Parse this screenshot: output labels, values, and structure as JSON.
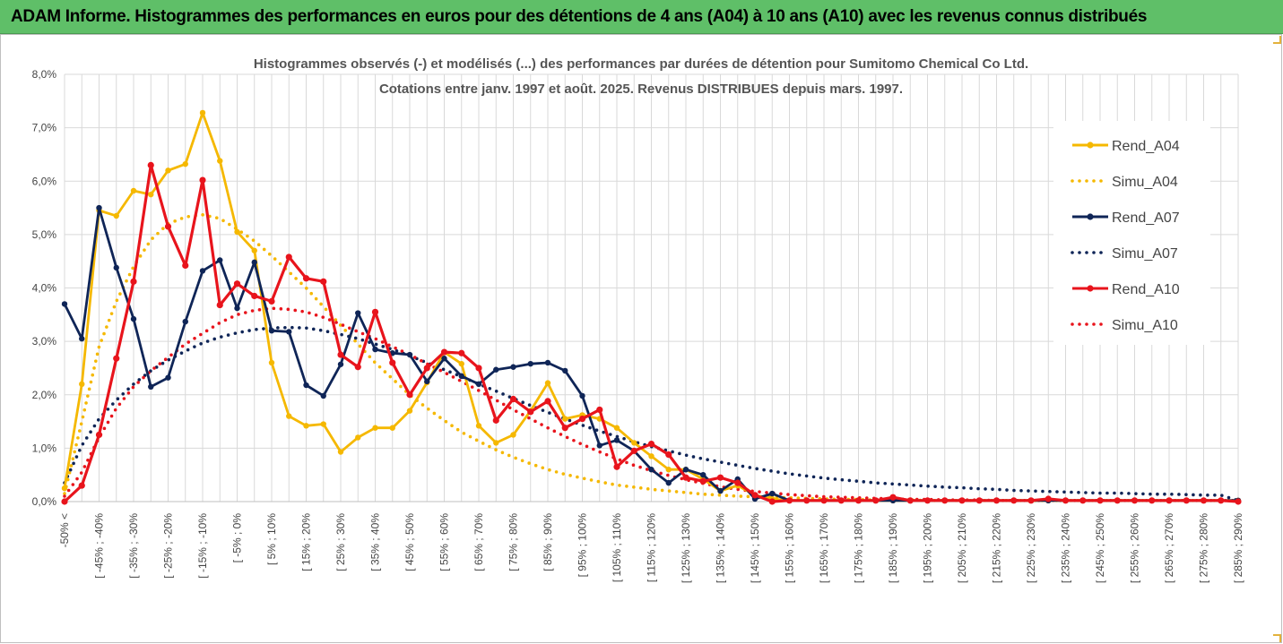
{
  "banner": {
    "title": "ADAM Informe. Histogrammes des performances en euros pour des détentions de 4 ans (A04) à 10 ans (A10) avec les revenus connus distribués"
  },
  "colors": {
    "banner_bg": "#5fbf68",
    "gold": "#f5b800",
    "navy": "#0f2557",
    "red": "#e8141c",
    "grid": "#d9d9d9"
  },
  "chart_data": {
    "type": "line",
    "title": [
      "Histogrammes observés (-) et modélisés (...) des performances par durées de détention pour Sumitomo Chemical Co Ltd.",
      "Cotations entre janv. 1997 et août. 2025. Revenus DISTRIBUES depuis mars. 1997."
    ],
    "xlabel": "",
    "ylabel": "",
    "ylim": [
      0,
      8.0
    ],
    "y_ticks": [
      "0,0%",
      "1,0%",
      "2,0%",
      "3,0%",
      "4,0%",
      "5,0%",
      "6,0%",
      "7,0%",
      "8,0%"
    ],
    "grid": "vertical and horizontal",
    "legend_position": "right",
    "x_labels": [
      "-50% <",
      "[ -45% ; -40%",
      "[ -35% ; -30%",
      "[ -25% ; -20%",
      "[ -15% ; -10%",
      "[ -5% ; 0%",
      "[ 5% ; 10%",
      "[ 15% ; 20%",
      "[ 25% ; 30%",
      "[ 35% ; 40%",
      "[ 45% ; 50%",
      "[ 55% ; 60%",
      "[ 65% ; 70%",
      "[ 75% ; 80%",
      "[ 85% ; 90%",
      "[ 95% ; 100%",
      "[ 105% ; 110%",
      "[ 115% ; 120%",
      "[ 125% ; 130%",
      "[ 135% ; 140%",
      "[ 145% ; 150%",
      "[ 155% ; 160%",
      "[ 165% ; 170%",
      "[ 175% ; 180%",
      "[ 185% ; 190%",
      "[ 195% ; 200%",
      "[ 205% ; 210%",
      "[ 215% ; 220%",
      "[ 225% ; 230%",
      "[ 235% ; 240%",
      "[ 245% ; 250%",
      "[ 255% ; 260%",
      "[ 265% ; 270%",
      "[ 275% ; 280%",
      "[ 285% ; 290%"
    ],
    "x_label_every": 2,
    "series": [
      {
        "name": "Rend_A04",
        "style": "solid",
        "color": "#f5b800",
        "values": [
          0.25,
          2.2,
          5.45,
          5.35,
          5.82,
          5.75,
          6.2,
          6.32,
          7.28,
          6.38,
          5.05,
          4.7,
          2.6,
          1.6,
          1.42,
          1.45,
          0.93,
          1.2,
          1.38,
          1.38,
          1.7,
          2.23,
          2.8,
          2.58,
          1.42,
          1.1,
          1.25,
          1.7,
          2.22,
          1.55,
          1.62,
          1.55,
          1.38,
          1.1,
          0.85,
          0.6,
          0.6,
          0.42,
          0.2,
          0.3,
          0.12,
          0.05,
          0.02,
          0.02,
          0.02,
          0.02,
          0.02,
          0.02,
          0.02,
          0.02,
          0.02,
          0.02,
          0.02,
          0.02,
          0.02,
          0.02,
          0.02,
          0.02,
          0.02,
          0.02,
          0.02,
          0.02,
          0.02,
          0.02,
          0.02,
          0.02,
          0.02,
          0.02,
          0.02
        ]
      },
      {
        "name": "Simu_A04",
        "style": "dotted",
        "color": "#f5b800",
        "values": [
          0.15,
          1.5,
          2.9,
          3.75,
          4.4,
          4.9,
          5.2,
          5.33,
          5.37,
          5.3,
          5.1,
          4.88,
          4.6,
          4.3,
          4.0,
          3.65,
          3.3,
          2.95,
          2.6,
          2.3,
          2.0,
          1.75,
          1.52,
          1.3,
          1.13,
          0.97,
          0.83,
          0.71,
          0.6,
          0.51,
          0.44,
          0.37,
          0.31,
          0.27,
          0.23,
          0.2,
          0.17,
          0.14,
          0.12,
          0.1,
          0.09,
          0.08,
          0.07,
          0.06,
          0.05,
          0.04,
          0.04,
          0.03,
          0.03,
          0.03,
          0.02,
          0.02,
          0.02,
          0.02,
          0.02,
          0.02,
          0.02,
          0.02,
          0.02,
          0.02,
          0.02,
          0.02,
          0.02,
          0.02,
          0.02,
          0.02,
          0.02,
          0.02,
          0.02
        ]
      },
      {
        "name": "Rend_A07",
        "style": "solid",
        "color": "#0f2557",
        "values": [
          3.7,
          3.05,
          5.5,
          4.38,
          3.42,
          2.15,
          2.32,
          3.37,
          4.32,
          4.52,
          3.62,
          4.48,
          3.2,
          3.18,
          2.18,
          1.98,
          2.57,
          3.53,
          2.85,
          2.78,
          2.75,
          2.25,
          2.68,
          2.35,
          2.2,
          2.47,
          2.52,
          2.58,
          2.6,
          2.45,
          1.98,
          1.05,
          1.15,
          0.95,
          0.6,
          0.35,
          0.6,
          0.5,
          0.2,
          0.42,
          0.05,
          0.15,
          0.02,
          0.02,
          0.02,
          0.02,
          0.02,
          0.02,
          0.02,
          0.02,
          0.02,
          0.02,
          0.02,
          0.02,
          0.02,
          0.02,
          0.02,
          0.02,
          0.02,
          0.02,
          0.02,
          0.02,
          0.02,
          0.02,
          0.02,
          0.02,
          0.02,
          0.02,
          0.02
        ]
      },
      {
        "name": "Simu_A07",
        "style": "dotted",
        "color": "#0f2557",
        "values": [
          0.35,
          1.05,
          1.55,
          1.9,
          2.2,
          2.45,
          2.65,
          2.82,
          2.97,
          3.08,
          3.16,
          3.22,
          3.25,
          3.26,
          3.25,
          3.2,
          3.13,
          3.05,
          2.95,
          2.85,
          2.73,
          2.6,
          2.47,
          2.34,
          2.2,
          2.07,
          1.93,
          1.8,
          1.67,
          1.55,
          1.43,
          1.32,
          1.22,
          1.12,
          1.03,
          0.95,
          0.87,
          0.8,
          0.74,
          0.68,
          0.62,
          0.57,
          0.52,
          0.48,
          0.44,
          0.41,
          0.38,
          0.35,
          0.33,
          0.31,
          0.29,
          0.27,
          0.26,
          0.24,
          0.23,
          0.21,
          0.2,
          0.19,
          0.18,
          0.17,
          0.16,
          0.16,
          0.15,
          0.14,
          0.14,
          0.13,
          0.12,
          0.12,
          0.02
        ]
      },
      {
        "name": "Rend_A10",
        "style": "solid",
        "color": "#e8141c",
        "values": [
          0.0,
          0.3,
          1.25,
          2.68,
          4.12,
          6.3,
          5.15,
          4.42,
          6.02,
          3.68,
          4.08,
          3.85,
          3.75,
          4.58,
          4.18,
          4.12,
          2.75,
          2.52,
          3.55,
          2.6,
          2.0,
          2.5,
          2.8,
          2.78,
          2.5,
          1.52,
          1.92,
          1.68,
          1.88,
          1.38,
          1.55,
          1.72,
          0.65,
          0.95,
          1.08,
          0.88,
          0.45,
          0.38,
          0.45,
          0.35,
          0.12,
          0.0,
          0.02,
          0.02,
          0.02,
          0.02,
          0.02,
          0.02,
          0.08,
          0.02,
          0.02,
          0.02,
          0.02,
          0.02,
          0.02,
          0.02,
          0.02,
          0.05,
          0.02,
          0.02,
          0.02,
          0.02,
          0.02,
          0.02,
          0.02,
          0.02,
          0.02,
          0.02,
          0.0
        ]
      },
      {
        "name": "Simu_A10",
        "style": "dotted",
        "color": "#e8141c",
        "values": [
          0.1,
          0.55,
          1.2,
          1.75,
          2.15,
          2.45,
          2.7,
          2.95,
          3.15,
          3.35,
          3.5,
          3.58,
          3.62,
          3.6,
          3.55,
          3.45,
          3.32,
          3.18,
          3.05,
          2.9,
          2.75,
          2.58,
          2.42,
          2.25,
          2.08,
          1.9,
          1.72,
          1.55,
          1.38,
          1.22,
          1.07,
          0.93,
          0.8,
          0.68,
          0.58,
          0.49,
          0.41,
          0.34,
          0.28,
          0.23,
          0.19,
          0.16,
          0.13,
          0.11,
          0.09,
          0.08,
          0.07,
          0.06,
          0.05,
          0.04,
          0.04,
          0.03,
          0.03,
          0.03,
          0.02,
          0.02,
          0.02,
          0.02,
          0.02,
          0.02,
          0.02,
          0.02,
          0.02,
          0.02,
          0.02,
          0.02,
          0.02,
          0.02,
          0.02
        ]
      }
    ]
  }
}
